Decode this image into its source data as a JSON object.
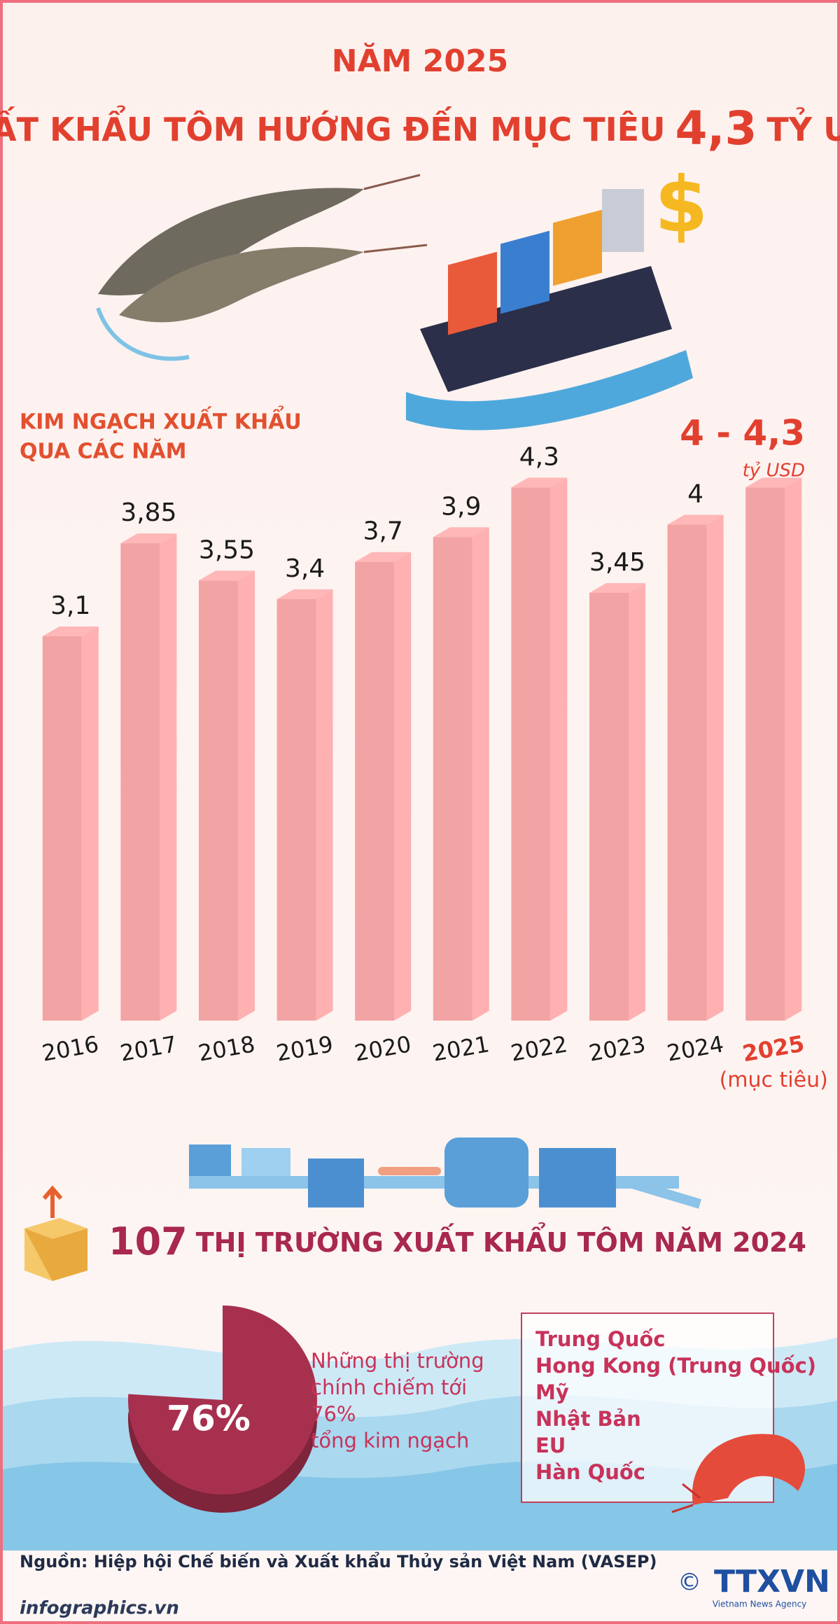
{
  "header": {
    "year_title": "NĂM 2025",
    "headline": "XUẤT KHẨU TÔM HƯỚNG ĐẾN MỤC TIÊU",
    "headline_value": "4,3",
    "headline_unit": "TỶ USD"
  },
  "chart_data": [
    {
      "type": "bar",
      "title_lines": [
        "KIM NGẠCH XUẤT KHẨU",
        "QUA CÁC NĂM"
      ],
      "unit": "tỷ USD",
      "categories": [
        "2016",
        "2017",
        "2018",
        "2019",
        "2020",
        "2021",
        "2022",
        "2023",
        "2024",
        "2025"
      ],
      "values": [
        3.1,
        3.85,
        3.55,
        3.4,
        3.7,
        3.9,
        4.3,
        3.45,
        4,
        4.3
      ],
      "value_labels": [
        "3,1",
        "3,85",
        "3,55",
        "3,4",
        "3,7",
        "3,9",
        "4,3",
        "3,45",
        "4",
        "4 - 4,3"
      ],
      "annotation": "(mục tiêu)",
      "color": "#f2a3a3",
      "ylim": [
        0,
        4.5
      ]
    },
    {
      "type": "pie",
      "values": [
        76
      ],
      "value_labels": [
        "76%"
      ],
      "color": "#a8304f",
      "description_lines": [
        "Những thị trường",
        "chính chiếm tới",
        "76%",
        "tổng kim ngạch"
      ]
    }
  ],
  "markets": {
    "count": 107,
    "title": "THỊ TRƯỜNG XUẤT KHẨU TÔM NĂM 2024",
    "list": [
      "Trung Quốc",
      "Hong Kong (Trung Quốc)",
      "Mỹ",
      "Nhật Bản",
      "EU",
      "Hàn Quốc"
    ]
  },
  "footer": {
    "source": "Nguồn: Hiệp hội Chế biến và Xuất khẩu Thủy sản Việt Nam (VASEP)",
    "site": "infographics.vn",
    "logo": "TTXVN",
    "logo_sub": "Vietnam News Agency"
  }
}
